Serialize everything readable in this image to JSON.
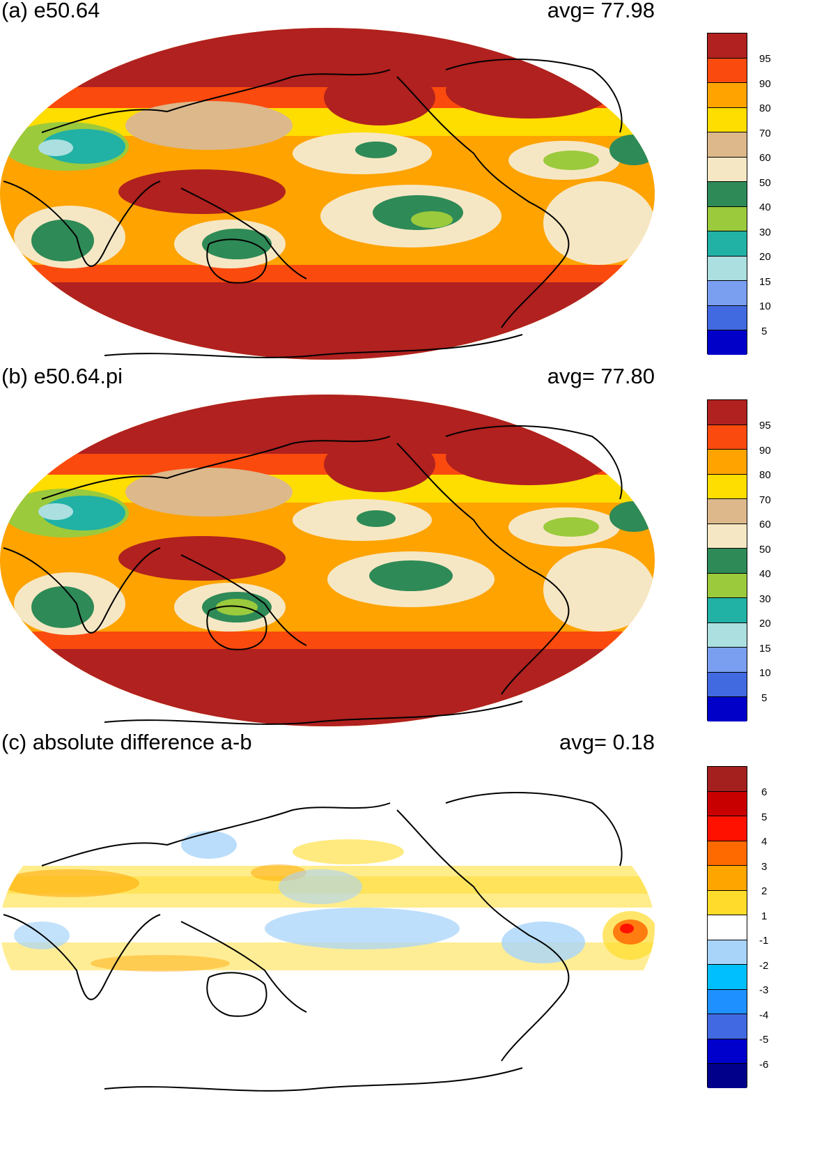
{
  "panels": [
    {
      "title": "(a) e50.64",
      "avg_text": "avg=   77.98",
      "colorbar": {
        "colors": [
          "#b0211f",
          "#fb4a0e",
          "#fea300",
          "#fedd00",
          "#dcb88b",
          "#f6e7c4",
          "#2e8a57",
          "#9bca3c",
          "#21b1a5",
          "#acdfe0",
          "#7a9ef0",
          "#4169e0",
          "#0000c8"
        ],
        "labels": [
          "95",
          "90",
          "80",
          "70",
          "60",
          "50",
          "40",
          "30",
          "20",
          "15",
          "10",
          "5"
        ]
      }
    },
    {
      "title": "(b) e50.64.pi",
      "avg_text": "avg=   77.80",
      "colorbar": {
        "colors": [
          "#b0211f",
          "#fb4a0e",
          "#fea300",
          "#fedd00",
          "#dcb88b",
          "#f6e7c4",
          "#2e8a57",
          "#9bca3c",
          "#21b1a5",
          "#acdfe0",
          "#7a9ef0",
          "#4169e0",
          "#0000c8"
        ],
        "labels": [
          "95",
          "90",
          "80",
          "70",
          "60",
          "50",
          "40",
          "30",
          "20",
          "15",
          "10",
          "5"
        ]
      }
    },
    {
      "title": "(c) absolute difference a-b",
      "avg_text": "avg=    0.18",
      "colorbar": {
        "colors": [
          "#a3201f",
          "#c80000",
          "#ff1100",
          "#ff6a00",
          "#ffa500",
          "#ffdc2b",
          "#ffffff",
          "#a8d4fa",
          "#00bfff",
          "#1e90ff",
          "#4169e1",
          "#0000cd",
          "#00008b"
        ],
        "labels": [
          "6",
          "5",
          "4",
          "3",
          "2",
          "1",
          "-1",
          "-2",
          "-3",
          "-4",
          "-5",
          "-6"
        ]
      }
    }
  ]
}
